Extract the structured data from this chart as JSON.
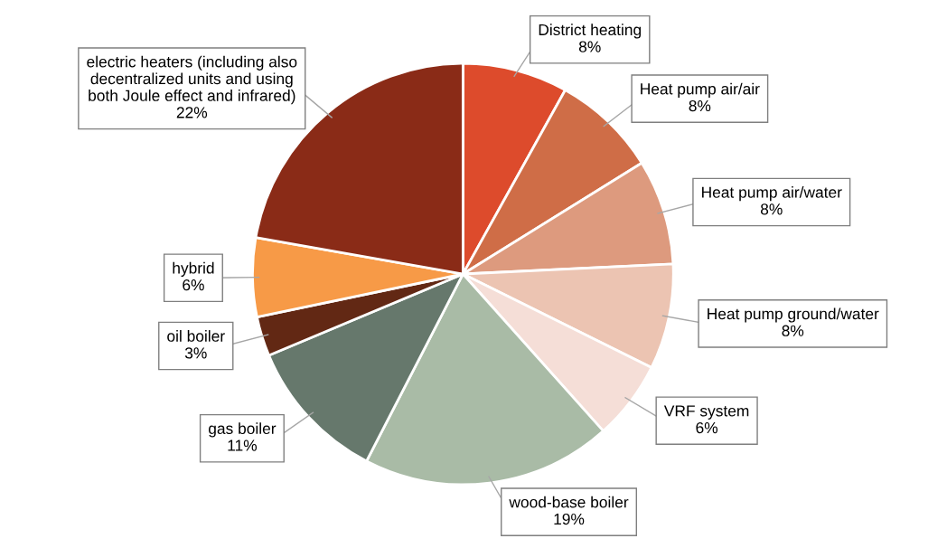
{
  "chart_data": {
    "type": "pie",
    "categories": [
      "District heating",
      "Heat pump air/air",
      "Heat pump air/water",
      "Heat pump ground/water",
      "VRF system",
      "wood-base boiler",
      "gas boiler",
      "oil boiler",
      "hybrid",
      "electric heaters (including also\ndecentralized units and using\nboth Joule effect and infrared)"
    ],
    "values": [
      8,
      8,
      8,
      8,
      6,
      19,
      11,
      3,
      6,
      22
    ],
    "value_labels": [
      "8%",
      "8%",
      "8%",
      "8%",
      "6%",
      "19%",
      "11%",
      "3%",
      "6%",
      "22%"
    ],
    "colors": [
      "#dd4b2c",
      "#cf6d47",
      "#dd9a7e",
      "#ecc4b2",
      "#f5ded7",
      "#a9bba6",
      "#66786c",
      "#622814",
      "#f79a47",
      "#8a2b17"
    ]
  }
}
